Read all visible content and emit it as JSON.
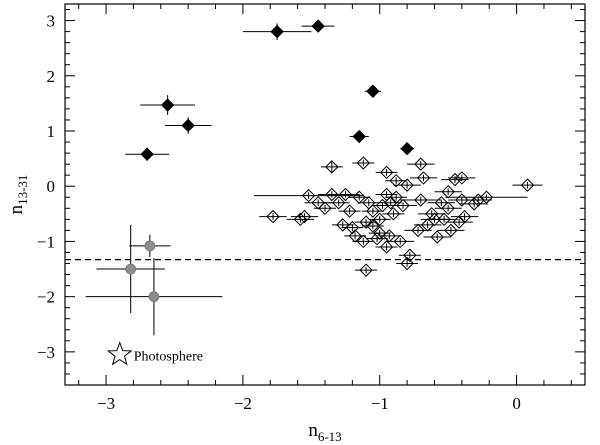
{
  "chart_data": {
    "type": "scatter",
    "title": "",
    "xlabel": {
      "base": "n",
      "sub": "6-13"
    },
    "ylabel": {
      "base": "n",
      "sub": "13-31"
    },
    "xlim": [
      -3.3,
      0.5
    ],
    "ylim": [
      -3.6,
      3.3
    ],
    "xticks": [
      -3,
      -2,
      -1,
      0
    ],
    "yticks": [
      -3,
      -2,
      -1,
      0,
      1,
      2,
      3
    ],
    "xtick_labels": [
      "−3",
      "−2",
      "−1",
      "0"
    ],
    "ytick_labels": [
      "−3",
      "−2",
      "−1",
      "0",
      "1",
      "2",
      "3"
    ],
    "grid": false,
    "hline": {
      "y": -1.33,
      "style": "dashed"
    },
    "annotation": {
      "symbol": "star-open",
      "text": "Photosphere",
      "x": -2.9,
      "y": -3.05
    },
    "series": [
      {
        "marker": "diamond-filled",
        "color": "#000000",
        "points": [
          {
            "x": -1.75,
            "y": 2.8,
            "xerr": 0.25,
            "yerr": 0.15
          },
          {
            "x": -1.45,
            "y": 2.9,
            "xerr": 0.12,
            "yerr": 0.05
          },
          {
            "x": -1.05,
            "y": 1.72,
            "xerr": 0.06,
            "yerr": 0.06
          },
          {
            "x": -2.55,
            "y": 1.47,
            "xerr": 0.2,
            "yerr": 0.18
          },
          {
            "x": -2.4,
            "y": 1.1,
            "xerr": 0.17,
            "yerr": 0.15
          },
          {
            "x": -1.15,
            "y": 0.9,
            "xerr": 0.07,
            "yerr": 0.07
          },
          {
            "x": -0.8,
            "y": 0.68,
            "xerr": 0.05,
            "yerr": 0.08
          },
          {
            "x": -2.7,
            "y": 0.58,
            "xerr": 0.16,
            "yerr": 0.12
          }
        ]
      },
      {
        "marker": "circle-gray",
        "color": "#8c8c8c",
        "points": [
          {
            "x": -2.68,
            "y": -1.08,
            "xerr": 0.15,
            "yerr": 0.2
          },
          {
            "x": -2.82,
            "y": -1.5,
            "xerr": 0.25,
            "yerr": 0.8
          },
          {
            "x": -2.65,
            "y": -2.0,
            "xerr": 0.5,
            "yerr": 0.7
          }
        ]
      },
      {
        "marker": "diamond-open",
        "color": "#000000",
        "points": [
          {
            "x": 0.08,
            "y": 0.02,
            "xerr": 0.11,
            "yerr": 0.06
          },
          {
            "x": -0.22,
            "y": -0.2,
            "xerr": 0.3,
            "yerr": 0.05
          },
          {
            "x": -0.28,
            "y": -0.25,
            "xerr": 0.1,
            "yerr": 0.06
          },
          {
            "x": -0.31,
            "y": -0.32,
            "xerr": 0.1,
            "yerr": 0.06
          },
          {
            "x": -0.4,
            "y": 0.15,
            "xerr": 0.1,
            "yerr": 0.06
          },
          {
            "x": -0.4,
            "y": -0.25,
            "xerr": 0.1,
            "yerr": 0.06
          },
          {
            "x": -0.45,
            "y": 0.12,
            "xerr": 0.1,
            "yerr": 0.06
          },
          {
            "x": -0.5,
            "y": -0.4,
            "xerr": 0.1,
            "yerr": 0.06
          },
          {
            "x": -0.55,
            "y": -0.3,
            "xerr": 0.1,
            "yerr": 0.06
          },
          {
            "x": -0.53,
            "y": -0.6,
            "xerr": 0.1,
            "yerr": 0.06
          },
          {
            "x": -0.48,
            "y": -0.8,
            "xerr": 0.1,
            "yerr": 0.06
          },
          {
            "x": -0.58,
            "y": -0.92,
            "xerr": 0.1,
            "yerr": 0.06
          },
          {
            "x": -0.62,
            "y": -0.5,
            "xerr": 0.1,
            "yerr": 0.06
          },
          {
            "x": -0.7,
            "y": 0.4,
            "xerr": 0.1,
            "yerr": 0.06
          },
          {
            "x": -0.68,
            "y": 0.15,
            "xerr": 0.1,
            "yerr": 0.06
          },
          {
            "x": -0.7,
            "y": -0.25,
            "xerr": 0.15,
            "yerr": 0.06
          },
          {
            "x": -0.72,
            "y": -0.8,
            "xerr": 0.1,
            "yerr": 0.06
          },
          {
            "x": -0.8,
            "y": 0.02,
            "xerr": 0.1,
            "yerr": 0.06
          },
          {
            "x": -0.83,
            "y": -0.35,
            "xerr": 0.1,
            "yerr": 0.06
          },
          {
            "x": -0.85,
            "y": -1.0,
            "xerr": 0.1,
            "yerr": 0.06
          },
          {
            "x": -0.78,
            "y": -1.25,
            "xerr": 0.08,
            "yerr": 0.06
          },
          {
            "x": -0.8,
            "y": -1.4,
            "xerr": 0.08,
            "yerr": 0.06
          },
          {
            "x": -0.88,
            "y": 0.1,
            "xerr": 0.08,
            "yerr": 0.06
          },
          {
            "x": -0.88,
            "y": -0.2,
            "xerr": 0.08,
            "yerr": 0.06
          },
          {
            "x": -0.9,
            "y": -0.5,
            "xerr": 0.08,
            "yerr": 0.06
          },
          {
            "x": -0.92,
            "y": -0.3,
            "xerr": 0.08,
            "yerr": 0.06
          },
          {
            "x": -0.95,
            "y": 0.25,
            "xerr": 0.08,
            "yerr": 0.06
          },
          {
            "x": -0.95,
            "y": -0.15,
            "xerr": 0.08,
            "yerr": 0.06
          },
          {
            "x": -0.93,
            "y": -0.9,
            "xerr": 0.08,
            "yerr": 0.06
          },
          {
            "x": -0.95,
            "y": -1.1,
            "xerr": 0.08,
            "yerr": 0.06
          },
          {
            "x": -0.98,
            "y": -0.35,
            "xerr": 0.08,
            "yerr": 0.06
          },
          {
            "x": -1.0,
            "y": -0.6,
            "xerr": 0.08,
            "yerr": 0.06
          },
          {
            "x": -1.0,
            "y": -0.85,
            "xerr": 0.08,
            "yerr": 0.06
          },
          {
            "x": -1.02,
            "y": -0.95,
            "xerr": 0.08,
            "yerr": 0.06
          },
          {
            "x": -1.05,
            "y": -0.45,
            "xerr": 0.08,
            "yerr": 0.06
          },
          {
            "x": -1.05,
            "y": -0.72,
            "xerr": 0.08,
            "yerr": 0.06
          },
          {
            "x": -1.08,
            "y": -0.3,
            "xerr": 0.08,
            "yerr": 0.06
          },
          {
            "x": -1.1,
            "y": -0.65,
            "xerr": 0.08,
            "yerr": 0.06
          },
          {
            "x": -1.12,
            "y": -1.0,
            "xerr": 0.08,
            "yerr": 0.06
          },
          {
            "x": -1.12,
            "y": 0.42,
            "xerr": 0.08,
            "yerr": 0.06
          },
          {
            "x": -1.1,
            "y": -1.52,
            "xerr": 0.08,
            "yerr": 0.06
          },
          {
            "x": -1.15,
            "y": -0.2,
            "xerr": 0.08,
            "yerr": 0.06
          },
          {
            "x": -1.18,
            "y": -0.9,
            "xerr": 0.08,
            "yerr": 0.06
          },
          {
            "x": -1.2,
            "y": -0.75,
            "xerr": 0.08,
            "yerr": 0.06
          },
          {
            "x": -1.22,
            "y": -0.45,
            "xerr": 0.08,
            "yerr": 0.06
          },
          {
            "x": -1.25,
            "y": -0.15,
            "xerr": 0.1,
            "yerr": 0.06
          },
          {
            "x": -1.27,
            "y": -0.7,
            "xerr": 0.08,
            "yerr": 0.06
          },
          {
            "x": -1.3,
            "y": -0.3,
            "xerr": 0.08,
            "yerr": 0.06
          },
          {
            "x": -1.35,
            "y": 0.35,
            "xerr": 0.08,
            "yerr": 0.1
          },
          {
            "x": -1.35,
            "y": -0.15,
            "xerr": 0.1,
            "yerr": 0.06
          },
          {
            "x": -1.4,
            "y": -0.4,
            "xerr": 0.08,
            "yerr": 0.06
          },
          {
            "x": -1.45,
            "y": -0.3,
            "xerr": 0.1,
            "yerr": 0.06
          },
          {
            "x": -1.55,
            "y": -0.55,
            "xerr": 0.1,
            "yerr": 0.06
          },
          {
            "x": -1.58,
            "y": -0.6,
            "xerr": 0.1,
            "yerr": 0.06
          },
          {
            "x": -1.78,
            "y": -0.55,
            "xerr": 0.1,
            "yerr": 0.06
          },
          {
            "x": -1.52,
            "y": -0.17,
            "xerr": 0.4,
            "yerr": 0.06
          },
          {
            "x": -0.5,
            "y": -0.1,
            "xerr": 0.1,
            "yerr": 0.06
          },
          {
            "x": -0.6,
            "y": -0.6,
            "xerr": 0.1,
            "yerr": 0.06
          },
          {
            "x": -0.65,
            "y": -0.7,
            "xerr": 0.1,
            "yerr": 0.06
          },
          {
            "x": -0.42,
            "y": -0.65,
            "xerr": 0.1,
            "yerr": 0.06
          },
          {
            "x": -0.38,
            "y": -0.55,
            "xerr": 0.1,
            "yerr": 0.06
          }
        ]
      }
    ]
  }
}
